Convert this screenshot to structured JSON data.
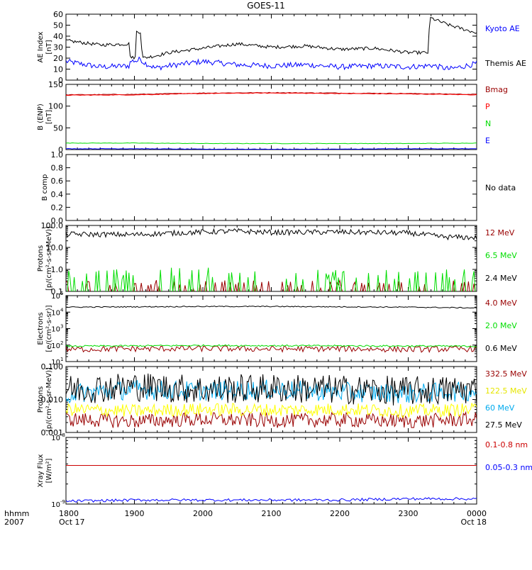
{
  "figure": {
    "title": "GOES-11",
    "time_label_1": "hhmm",
    "time_label_2": "2007"
  },
  "time_axis": {
    "ticks": [
      {
        "label": "1800",
        "sub": "Oct 17"
      },
      {
        "label": "1900",
        "sub": ""
      },
      {
        "label": "2000",
        "sub": ""
      },
      {
        "label": "2100",
        "sub": ""
      },
      {
        "label": "2200",
        "sub": ""
      },
      {
        "label": "2300",
        "sub": ""
      },
      {
        "label": "0000",
        "sub": "Oct 18"
      }
    ]
  },
  "colors": {
    "black": "#000000",
    "blue": "#0000ff",
    "darkred": "#990000",
    "red": "#ff0000",
    "green": "#00dd00",
    "cyan": "#00aaee",
    "yellow": "#ffff00"
  },
  "chart_data": [
    {
      "type": "line",
      "panel": "ae",
      "ylabel": [
        "AE Index",
        "[nT]"
      ],
      "ylim": [
        0,
        60
      ],
      "yticks": [
        "0",
        "10",
        "20",
        "30",
        "40",
        "50",
        "60"
      ],
      "x": [
        18.0,
        18.5,
        18.93,
        18.94,
        19.02,
        19.03,
        19.1,
        19.11,
        19.3,
        19.5,
        20.0,
        20.5,
        21.0,
        21.5,
        22.0,
        22.5,
        23.0,
        23.3,
        23.31,
        23.6,
        24.0
      ],
      "series": [
        {
          "name": "Kyoto AE",
          "color": "#0000ff",
          "values": [
            17,
            12,
            13,
            17,
            18,
            17,
            20,
            17,
            11,
            13,
            17,
            14,
            13,
            14,
            12,
            13,
            12,
            13,
            14,
            10,
            15
          ]
        },
        {
          "name": "Themis AE",
          "color": "#000000",
          "values": [
            36,
            32,
            33,
            20,
            21,
            44,
            44,
            20,
            22,
            25,
            29,
            33,
            30,
            31,
            28,
            29,
            25,
            25,
            57,
            50,
            43
          ]
        }
      ]
    },
    {
      "type": "line",
      "panel": "bfield",
      "ylabel": [
        "B (ENP)",
        "[nT]"
      ],
      "ylim": [
        0,
        150
      ],
      "yticks": [
        "0",
        "50",
        "100",
        "150"
      ],
      "x": [
        18.0,
        19.0,
        20.0,
        21.0,
        22.0,
        23.0,
        24.0
      ],
      "series": [
        {
          "name": "Bmag",
          "color": "#990000",
          "values": [
            126,
            127,
            130,
            131,
            130,
            129,
            127
          ]
        },
        {
          "name": "P",
          "color": "#ff0000",
          "values": [
            125,
            126,
            129,
            130,
            129,
            128,
            126
          ]
        },
        {
          "name": "N",
          "color": "#00dd00",
          "values": [
            15,
            15,
            14,
            14,
            14,
            14,
            15
          ]
        },
        {
          "name": "E",
          "color": "#0000ff",
          "values": [
            2,
            2,
            1,
            1,
            1,
            2,
            2
          ]
        }
      ]
    },
    {
      "type": "line",
      "panel": "bcomp",
      "ylabel": [
        "B comp"
      ],
      "ylim": [
        0,
        1
      ],
      "yticks": [
        "0.0",
        "0.2",
        "0.4",
        "0.6",
        "0.8",
        "1.0"
      ],
      "note": "No data",
      "series": []
    },
    {
      "type": "line",
      "panel": "protons_low",
      "ylabel": [
        "Protons",
        "[p/(cm²-s-sr-MeV)]"
      ],
      "ylim": [
        0.1,
        100
      ],
      "log": true,
      "yticks": [
        "0.1",
        "1.0",
        "10.0",
        "100.0"
      ],
      "x": [
        18.0,
        19.0,
        20.0,
        20.5,
        21.0,
        22.0,
        23.0,
        23.5,
        24.0
      ],
      "series": [
        {
          "name": "12 MeV",
          "color": "#990000",
          "values": [
            0.12,
            0.15,
            0.12,
            0.13,
            0.12,
            0.14,
            0.12,
            0.13,
            0.12
          ]
        },
        {
          "name": "6.5 MeV",
          "color": "#00dd00",
          "values": [
            0.25,
            0.3,
            0.35,
            0.2,
            0.28,
            0.3,
            0.25,
            0.3,
            0.28
          ]
        },
        {
          "name": "2.4 MeV",
          "color": "#000000",
          "values": [
            40,
            38,
            50,
            55,
            48,
            50,
            45,
            30,
            28
          ]
        }
      ]
    },
    {
      "type": "line",
      "panel": "electrons",
      "ylabel": [
        "Electrons",
        "[e/(cm²-s-sr)]"
      ],
      "ylim": [
        10,
        100000
      ],
      "log": true,
      "yticks": [
        {
          "base": "10",
          "exp": "1"
        },
        {
          "base": "10",
          "exp": "2"
        },
        {
          "base": "10",
          "exp": "3"
        },
        {
          "base": "10",
          "exp": "4"
        },
        {
          "base": "10",
          "exp": "5"
        }
      ],
      "x": [
        18.0,
        19.0,
        20.0,
        21.0,
        22.0,
        23.0,
        24.0
      ],
      "series": [
        {
          "name": "4.0 MeV",
          "color": "#990000",
          "values": [
            55,
            60,
            62,
            58,
            60,
            55,
            60
          ]
        },
        {
          "name": "2.0 MeV",
          "color": "#00dd00",
          "values": [
            85,
            90,
            95,
            92,
            90,
            88,
            85
          ]
        },
        {
          "name": "0.6 MeV",
          "color": "#000000",
          "values": [
            20000,
            21000,
            22000,
            22000,
            21000,
            20000,
            18000
          ]
        }
      ]
    },
    {
      "type": "line",
      "panel": "protons_high",
      "ylabel": [
        "Protons",
        "[p/(cm²-s-sr-MeV)]"
      ],
      "ylim": [
        0.001,
        0.1
      ],
      "log": true,
      "yticks": [
        "0.001",
        "0.010",
        "0.100"
      ],
      "x": [
        18.0,
        19.0,
        20.0,
        21.0,
        22.0,
        23.0,
        24.0
      ],
      "series": [
        {
          "name": "332.5 MeV",
          "color": "#990000",
          "values": [
            0.0025,
            0.0022,
            0.0025,
            0.0023,
            0.0024,
            0.0022,
            0.0025
          ]
        },
        {
          "name": "122.5 MeV",
          "color": "#ffff00",
          "values": [
            0.005,
            0.0045,
            0.005,
            0.0048,
            0.005,
            0.0045,
            0.005
          ]
        },
        {
          "name": "60 MeV",
          "color": "#00aaee",
          "values": [
            0.015,
            0.02,
            0.018,
            0.02,
            0.017,
            0.015,
            0.018
          ]
        },
        {
          "name": "27.5 MeV",
          "color": "#000000",
          "values": [
            0.02,
            0.025,
            0.02,
            0.022,
            0.02,
            0.018,
            0.02
          ]
        }
      ]
    },
    {
      "type": "line",
      "panel": "xray",
      "ylabel": [
        "Xray Flux",
        "[W/m²]"
      ],
      "ylim": [
        1e-09,
        1e-08
      ],
      "log": true,
      "yticks": [
        {
          "base": "10",
          "exp": "-9"
        },
        {
          "base": "10",
          "exp": "-8"
        }
      ],
      "x": [
        18.0,
        19.0,
        20.0,
        21.0,
        22.0,
        23.0,
        24.0
      ],
      "series": [
        {
          "name": "0.1-0.8 nm",
          "color": "#cc0000",
          "values": [
            3.8e-09,
            3.8e-09,
            3.8e-09,
            3.8e-09,
            3.8e-09,
            3.8e-09,
            3.8e-09
          ]
        },
        {
          "name": "0.05-0.3 nm",
          "color": "#0000ff",
          "values": [
            1.1e-09,
            1.15e-09,
            1.15e-09,
            1.15e-09,
            1.15e-09,
            1.2e-09,
            1.2e-09
          ]
        }
      ]
    }
  ]
}
